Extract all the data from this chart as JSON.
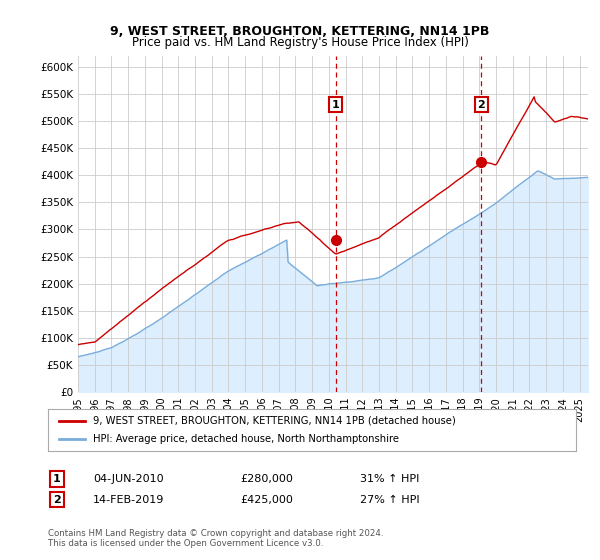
{
  "title1": "9, WEST STREET, BROUGHTON, KETTERING, NN14 1PB",
  "title2": "Price paid vs. HM Land Registry's House Price Index (HPI)",
  "ylim": [
    0,
    620000
  ],
  "xlim_start": 1995.0,
  "xlim_end": 2025.5,
  "yticks": [
    0,
    50000,
    100000,
    150000,
    200000,
    250000,
    300000,
    350000,
    400000,
    450000,
    500000,
    550000,
    600000
  ],
  "ytick_labels": [
    "£0",
    "£50K",
    "£100K",
    "£150K",
    "£200K",
    "£250K",
    "£300K",
    "£350K",
    "£400K",
    "£450K",
    "£500K",
    "£550K",
    "£600K"
  ],
  "xtick_years": [
    1995,
    1996,
    1997,
    1998,
    1999,
    2000,
    2001,
    2002,
    2003,
    2004,
    2005,
    2006,
    2007,
    2008,
    2009,
    2010,
    2011,
    2012,
    2013,
    2014,
    2015,
    2016,
    2017,
    2018,
    2019,
    2020,
    2021,
    2022,
    2023,
    2024,
    2025
  ],
  "grid_color": "#cccccc",
  "background_color": "#ffffff",
  "plot_bg_color": "#ffffff",
  "hpi_fill_color": "#ddeeff",
  "hpi_line_color": "#7aaddb",
  "price_line_color": "#cc0000",
  "sale1_date": 2010.42,
  "sale1_price": 280000,
  "sale2_date": 2019.12,
  "sale2_price": 425000,
  "legend_label1": "9, WEST STREET, BROUGHTON, KETTERING, NN14 1PB (detached house)",
  "legend_label2": "HPI: Average price, detached house, North Northamptonshire",
  "annotation1_date": "04-JUN-2010",
  "annotation1_price": "£280,000",
  "annotation1_hpi": "31% ↑ HPI",
  "annotation2_date": "14-FEB-2019",
  "annotation2_price": "£425,000",
  "annotation2_hpi": "27% ↑ HPI",
  "footer": "Contains HM Land Registry data © Crown copyright and database right 2024.\nThis data is licensed under the Open Government Licence v3.0."
}
